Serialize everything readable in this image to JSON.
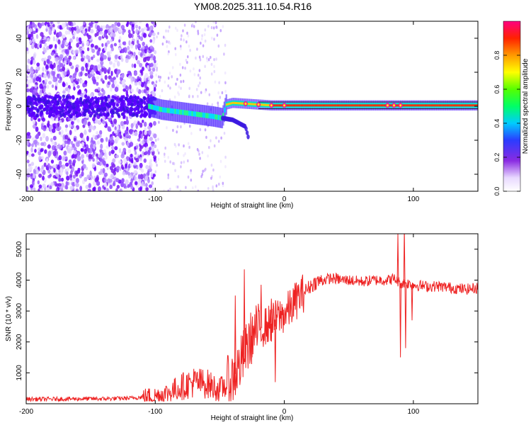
{
  "title": "YM08.2025.311.10.54.R16",
  "chart_data": [
    {
      "type": "heatmap",
      "name": "spectrogram",
      "xlabel": "Height of straight line (km)",
      "ylabel": "Frequency (Hz)",
      "xlim": [
        -200,
        150
      ],
      "ylim": [
        -50,
        50
      ],
      "xticks": [
        -200,
        -100,
        0,
        100
      ],
      "yticks": [
        -40,
        -20,
        0,
        20,
        40
      ],
      "colorbar": {
        "label": "Normalized spectral amplitude",
        "range": [
          0,
          1
        ],
        "ticks": [
          0.0,
          0.2,
          0.4,
          0.6,
          0.8
        ]
      },
      "features": {
        "noise_region_x": [
          -200,
          -100
        ],
        "noise_fade_x": [
          -100,
          -45
        ],
        "signal_track": {
          "x": [
            -105,
            -95,
            -85,
            -75,
            -65,
            -55,
            -48,
            -45,
            -40,
            -30,
            -20,
            -10,
            0,
            50,
            100,
            150
          ],
          "freq": [
            0,
            -2,
            -3,
            -4,
            -5,
            -6,
            -7,
            1,
            2,
            1.5,
            1,
            0.5,
            0.5,
            0.5,
            0.5,
            0.5
          ]
        },
        "branch": {
          "x": [
            -48,
            -40,
            -30,
            -28
          ],
          "freq": [
            -7,
            -8,
            -12,
            -18
          ]
        },
        "bright_spots_x": [
          -30,
          -20,
          -10,
          0,
          80,
          85,
          90
        ]
      }
    },
    {
      "type": "line",
      "name": "snr",
      "xlabel": "Height of straight line (km)",
      "ylabel": "SNR (10 * v/v)",
      "xlim": [
        -200,
        150
      ],
      "ylim": [
        0,
        5500
      ],
      "xticks": [
        -200,
        -100,
        0,
        100
      ],
      "yticks": [
        1000,
        2000,
        3000,
        4000,
        5000
      ],
      "color": "#ee2222",
      "series": [
        {
          "name": "SNR",
          "x": [
            -200,
            -180,
            -160,
            -140,
            -120,
            -100,
            -90,
            -80,
            -70,
            -60,
            -50,
            -40,
            -35,
            -30,
            -25,
            -20,
            -15,
            -10,
            -5,
            0,
            5,
            10,
            15,
            20,
            25,
            30,
            35,
            40,
            45,
            50,
            60,
            70,
            80,
            85,
            90,
            95,
            100,
            110,
            120,
            130,
            140,
            150
          ],
          "values": [
            150,
            150,
            160,
            160,
            180,
            250,
            350,
            550,
            700,
            650,
            450,
            800,
            1200,
            1700,
            2200,
            2400,
            2500,
            2600,
            2800,
            2900,
            3100,
            3400,
            3600,
            3800,
            3950,
            4000,
            4050,
            4050,
            4000,
            4000,
            3950,
            4000,
            4000,
            4050,
            3900,
            3900,
            3850,
            3800,
            3800,
            3750,
            3700,
            3750
          ]
        }
      ],
      "spikes": [
        {
          "x": -38,
          "value": 3500
        },
        {
          "x": -31,
          "value": 4350
        },
        {
          "x": -25,
          "value": 1500
        },
        {
          "x": -18,
          "value": 3850
        },
        {
          "x": -10,
          "value": 3400
        },
        {
          "x": -7,
          "value": 700
        },
        {
          "x": 88,
          "value": 5500
        },
        {
          "x": 90,
          "value": 1500
        },
        {
          "x": 93,
          "value": 5700
        },
        {
          "x": 94,
          "value": 1800
        },
        {
          "x": 99,
          "value": 2700
        }
      ]
    }
  ],
  "colors": {
    "frame": "#000000",
    "line": "#ee2222"
  }
}
